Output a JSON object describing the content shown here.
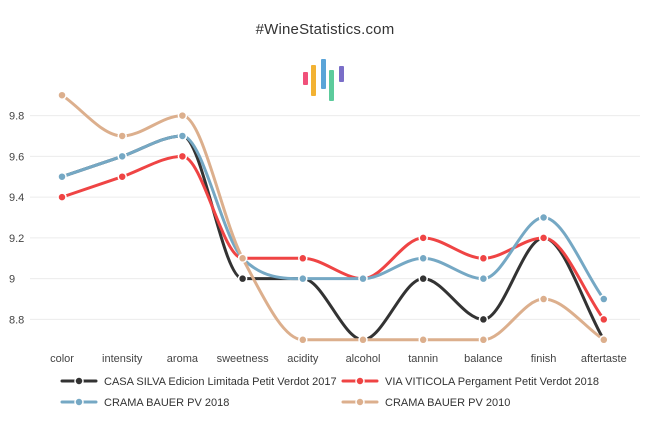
{
  "site": {
    "title": "#WineStatistics.com"
  },
  "logo": {
    "name": "bar-logo",
    "colors": [
      "#f0507a",
      "#f2b233",
      "#5aa4d8",
      "#5ccb9c",
      "#7a6ec8"
    ]
  },
  "chart_data": {
    "type": "line",
    "title": "#WineStatistics.com",
    "xlabel": "",
    "ylabel": "",
    "categories": [
      "color",
      "intensity",
      "aroma",
      "sweetness",
      "acidity",
      "alcohol",
      "tannin",
      "balance",
      "finish",
      "aftertaste"
    ],
    "ylim": [
      8.65,
      9.95
    ],
    "yticks": [
      8.8,
      9,
      9.2,
      9.4,
      9.6,
      9.8
    ],
    "ytick_labels": [
      "8.8",
      "9",
      "9.2",
      "9.4",
      "9.6",
      "9.8"
    ],
    "grid": true,
    "legend_position": "bottom",
    "series": [
      {
        "name": "CASA SILVA Edicion Limitada Petit Verdot 2017",
        "color": "#333333",
        "values": [
          9.5,
          9.6,
          9.7,
          9.0,
          9.0,
          8.7,
          9.0,
          8.8,
          9.2,
          8.7
        ]
      },
      {
        "name": "VIA VITICOLA Pergament Petit Verdot 2018",
        "color": "#ef4444",
        "values": [
          9.4,
          9.5,
          9.6,
          9.1,
          9.1,
          9.0,
          9.2,
          9.1,
          9.2,
          8.8
        ]
      },
      {
        "name": "CRAMA BAUER PV 2018",
        "color": "#75a8c4",
        "values": [
          9.5,
          9.6,
          9.7,
          9.1,
          9.0,
          9.0,
          9.1,
          9.0,
          9.3,
          8.9
        ]
      },
      {
        "name": "CRAMA BAUER PV 2010",
        "color": "#dcaf8d",
        "values": [
          9.9,
          9.7,
          9.8,
          9.1,
          8.7,
          8.7,
          8.7,
          8.7,
          8.9,
          8.7
        ]
      }
    ]
  }
}
